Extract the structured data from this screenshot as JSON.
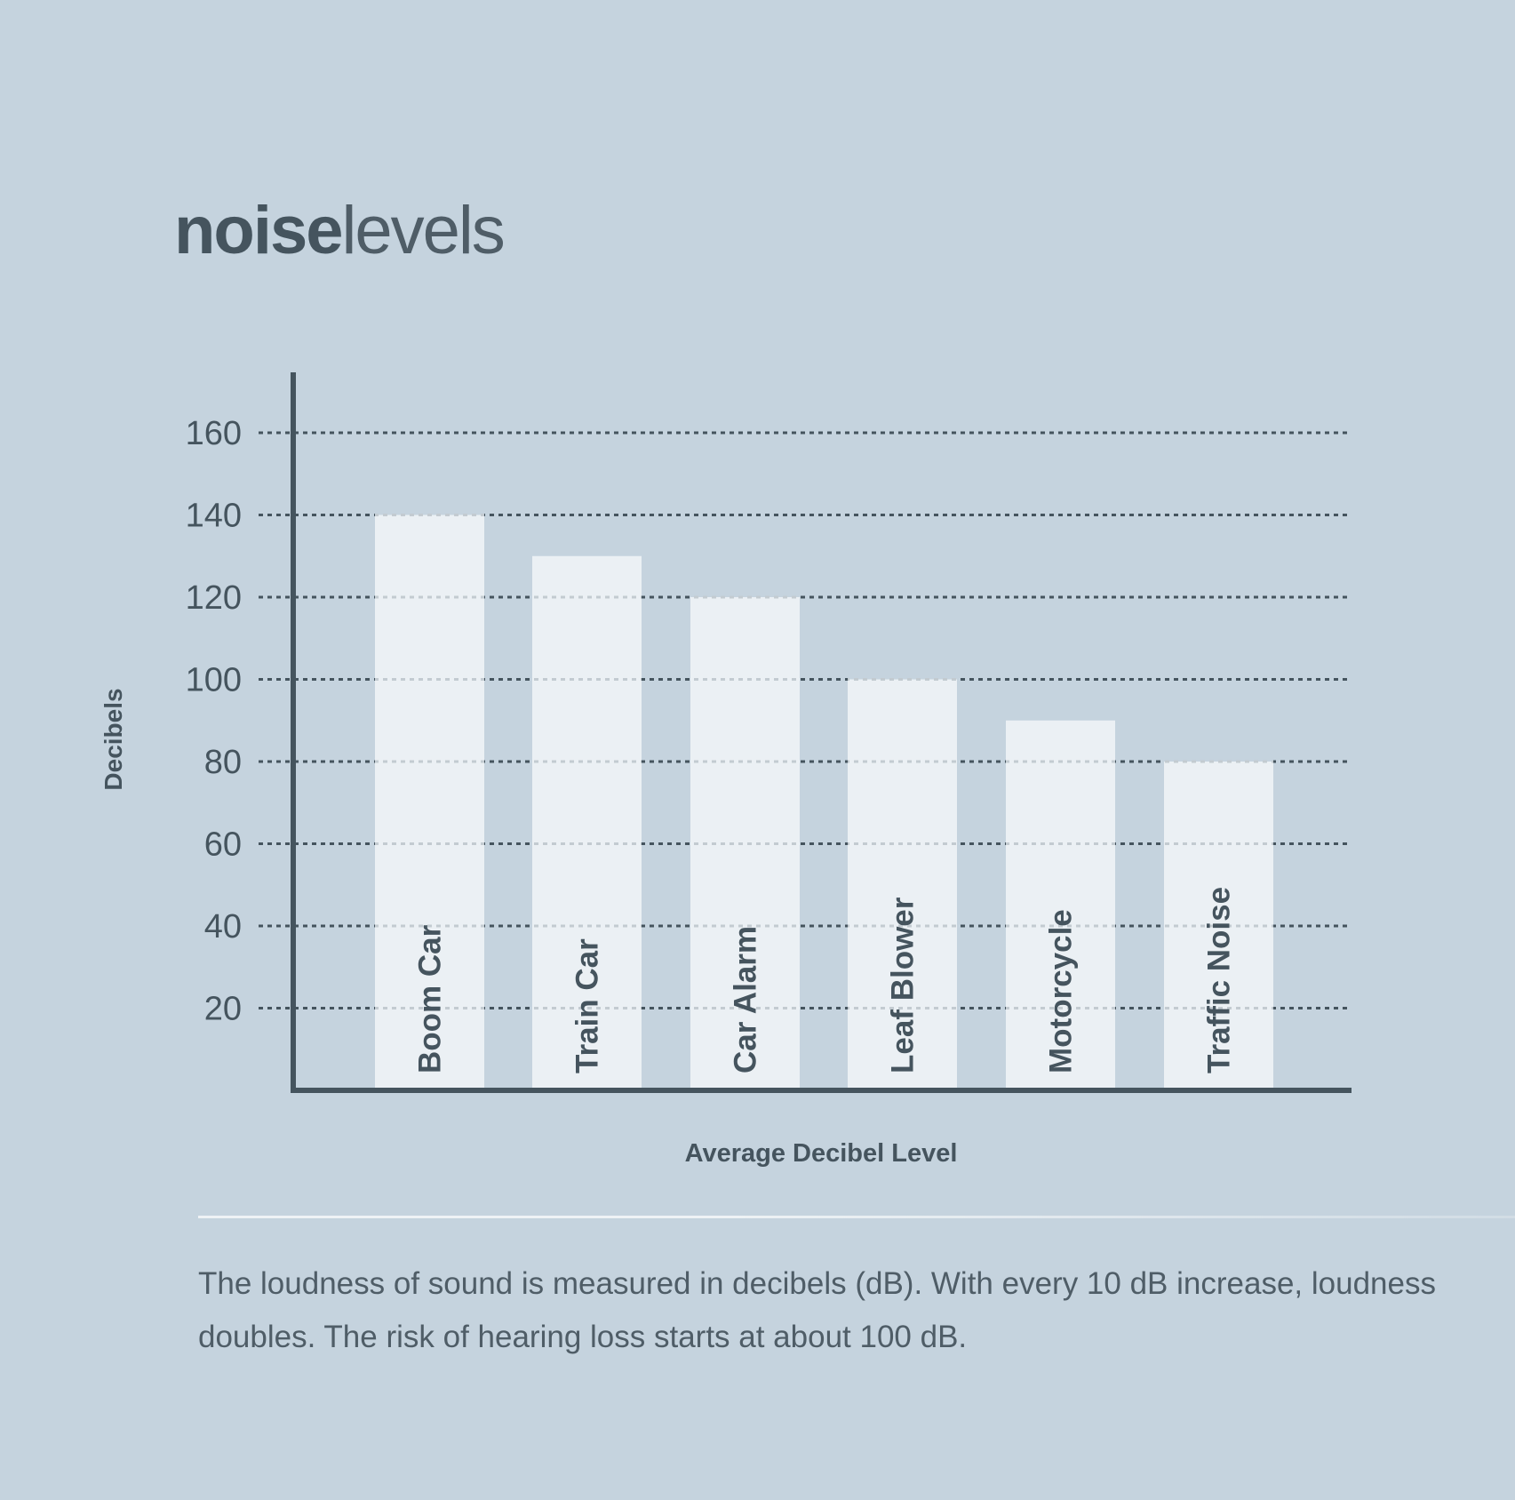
{
  "title": {
    "bold": "noise",
    "light": "levels"
  },
  "chart_data": {
    "type": "bar",
    "title": "noiselevels",
    "xlabel": "Average Decibel Level",
    "ylabel": "Decibels",
    "categories": [
      "Boom Car",
      "Train Car",
      "Car Alarm",
      "Leaf Blower",
      "Motorcycle",
      "Traffic Noise"
    ],
    "values": [
      140,
      130,
      120,
      100,
      90,
      80
    ],
    "ylim": [
      0,
      175
    ],
    "yticks": [
      20,
      40,
      60,
      80,
      100,
      120,
      140,
      160
    ],
    "grid": true,
    "colors": {
      "background": "#c5d3de",
      "axis": "#45545e",
      "bar": "#ebf0f4",
      "text": "#45545e"
    }
  },
  "caption": "The loudness of sound is measured in decibels (dB). With every 10 dB increase, loudness doubles. The risk of hearing loss starts at about 100 dB."
}
